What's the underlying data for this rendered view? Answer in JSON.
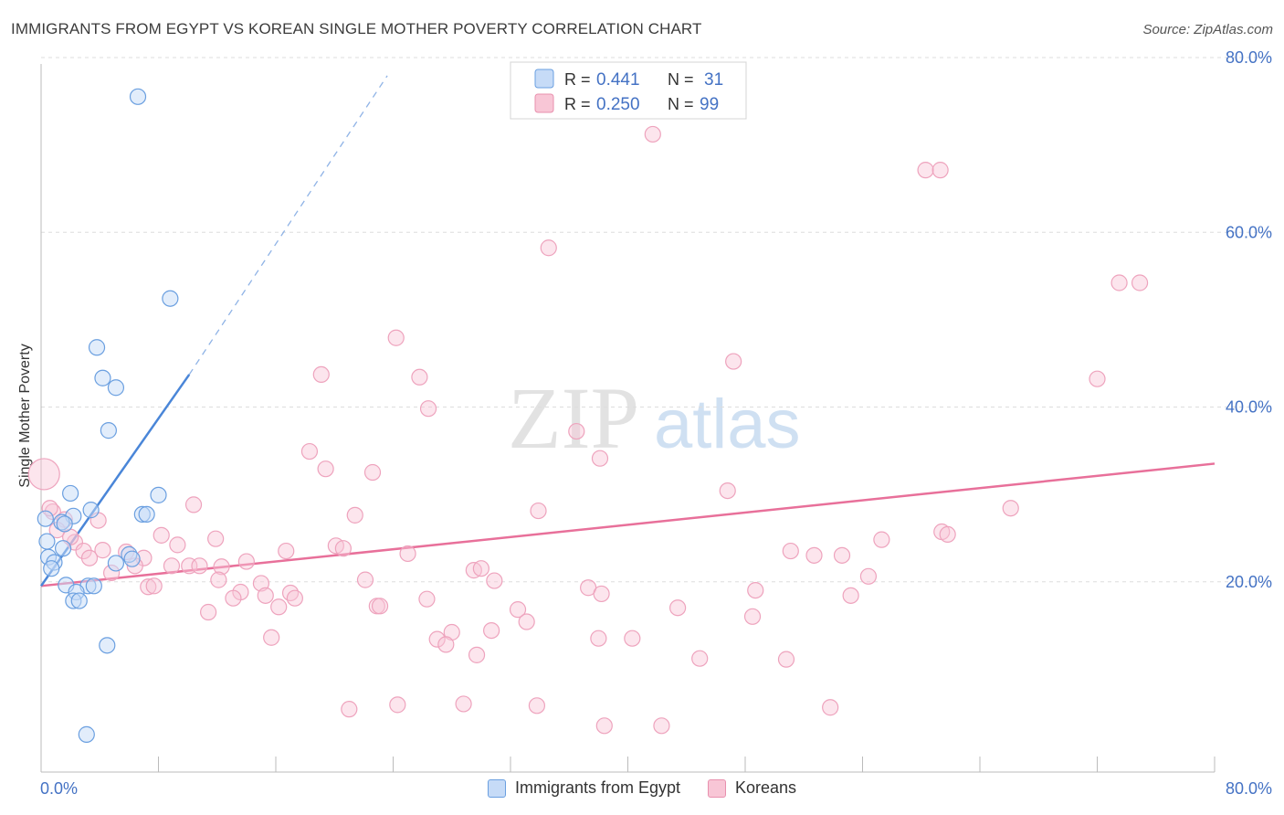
{
  "title": "IMMIGRANTS FROM EGYPT VS KOREAN SINGLE MOTHER POVERTY CORRELATION CHART",
  "source": "Source: ZipAtlas.com",
  "watermark": {
    "zip": "ZIP",
    "atlas": "atlas"
  },
  "legend": [
    {
      "r_label": "R =",
      "r_value": "0.441",
      "n_label": "N =",
      "n_value": "31"
    },
    {
      "r_label": "R =",
      "r_value": "0.250",
      "n_label": "N =",
      "n_value": "99"
    }
  ],
  "bottom_legend": [
    "Immigrants from Egypt",
    "Koreans"
  ],
  "chart_data": {
    "type": "scatter",
    "xlabel": "",
    "ylabel": "Single Mother Poverty",
    "xlim": [
      0,
      80
    ],
    "ylim": [
      0,
      80
    ],
    "x_tick_labels": [
      "0.0%",
      "80.0%"
    ],
    "y_tick_labels": [
      "80.0%",
      "60.0%",
      "40.0%",
      "20.0%"
    ],
    "y_ticks": [
      80,
      60,
      40,
      20
    ],
    "grid": true,
    "colors": {
      "egypt": "#4a86d8",
      "koreans": "#e8709a",
      "axis_text": "#4472c4"
    },
    "series": [
      {
        "name": "Immigrants from Egypt",
        "points": [
          [
            6.6,
            77.3
          ],
          [
            8.8,
            54.2
          ],
          [
            3.8,
            48.6
          ],
          [
            4.2,
            45.1
          ],
          [
            5.1,
            44.0
          ],
          [
            4.6,
            39.1
          ],
          [
            8.0,
            31.7
          ],
          [
            2.0,
            31.9
          ],
          [
            3.4,
            30.0
          ],
          [
            6.9,
            29.5
          ],
          [
            7.2,
            29.5
          ],
          [
            2.2,
            29.3
          ],
          [
            1.4,
            28.6
          ],
          [
            1.6,
            28.4
          ],
          [
            0.3,
            29.0
          ],
          [
            0.4,
            26.4
          ],
          [
            1.5,
            25.6
          ],
          [
            0.5,
            24.6
          ],
          [
            0.9,
            24.0
          ],
          [
            0.7,
            23.3
          ],
          [
            6.0,
            24.9
          ],
          [
            6.2,
            24.4
          ],
          [
            5.1,
            23.9
          ],
          [
            1.7,
            21.4
          ],
          [
            3.2,
            21.3
          ],
          [
            3.6,
            21.3
          ],
          [
            2.4,
            20.6
          ],
          [
            2.2,
            19.6
          ],
          [
            2.6,
            19.6
          ],
          [
            4.5,
            14.5
          ],
          [
            3.1,
            4.3
          ]
        ],
        "trend": {
          "x0": 0,
          "y0": 21.3,
          "x1": 10.1,
          "y1": 45.5,
          "dash_to_x": 23.6,
          "dash_to_y": 79.7
        }
      },
      {
        "name": "Koreans",
        "points": [
          [
            41.7,
            73.0
          ],
          [
            60.3,
            68.9
          ],
          [
            61.3,
            68.9
          ],
          [
            34.6,
            60.0
          ],
          [
            73.5,
            56.0
          ],
          [
            74.9,
            56.0
          ],
          [
            24.2,
            49.7
          ],
          [
            47.2,
            47.0
          ],
          [
            19.1,
            45.5
          ],
          [
            25.8,
            45.2
          ],
          [
            72.0,
            45.0
          ],
          [
            26.4,
            41.6
          ],
          [
            36.5,
            39.0
          ],
          [
            18.3,
            36.7
          ],
          [
            38.1,
            35.9
          ],
          [
            19.4,
            34.7
          ],
          [
            22.6,
            34.3
          ],
          [
            0.2,
            34.1
          ],
          [
            46.8,
            32.2
          ],
          [
            10.4,
            30.6
          ],
          [
            0.8,
            29.8
          ],
          [
            33.9,
            29.9
          ],
          [
            66.1,
            30.2
          ],
          [
            21.4,
            29.4
          ],
          [
            1.6,
            28.9
          ],
          [
            3.9,
            28.8
          ],
          [
            8.2,
            27.1
          ],
          [
            11.9,
            26.7
          ],
          [
            57.3,
            26.6
          ],
          [
            61.4,
            27.5
          ],
          [
            61.8,
            27.2
          ],
          [
            2.3,
            26.3
          ],
          [
            9.3,
            26.0
          ],
          [
            20.1,
            25.9
          ],
          [
            20.6,
            25.6
          ],
          [
            16.7,
            25.3
          ],
          [
            4.2,
            25.4
          ],
          [
            5.8,
            25.2
          ],
          [
            2.9,
            25.3
          ],
          [
            3.3,
            24.5
          ],
          [
            7.0,
            24.5
          ],
          [
            25.0,
            25.0
          ],
          [
            51.1,
            25.3
          ],
          [
            52.7,
            24.8
          ],
          [
            54.6,
            24.8
          ],
          [
            14.0,
            24.1
          ],
          [
            8.9,
            23.6
          ],
          [
            10.1,
            23.6
          ],
          [
            10.8,
            23.6
          ],
          [
            12.3,
            23.5
          ],
          [
            4.8,
            22.8
          ],
          [
            6.4,
            23.6
          ],
          [
            29.5,
            23.1
          ],
          [
            30.0,
            23.3
          ],
          [
            56.4,
            22.4
          ],
          [
            12.1,
            22.0
          ],
          [
            22.1,
            22.0
          ],
          [
            30.9,
            21.9
          ],
          [
            7.3,
            21.2
          ],
          [
            7.7,
            21.3
          ],
          [
            15.0,
            21.6
          ],
          [
            37.3,
            21.1
          ],
          [
            13.6,
            20.6
          ],
          [
            48.7,
            20.8
          ],
          [
            15.3,
            20.2
          ],
          [
            17.0,
            20.5
          ],
          [
            38.2,
            20.4
          ],
          [
            55.2,
            20.2
          ],
          [
            13.1,
            19.9
          ],
          [
            17.3,
            19.9
          ],
          [
            26.3,
            19.8
          ],
          [
            22.9,
            19.0
          ],
          [
            23.1,
            19.0
          ],
          [
            32.5,
            18.6
          ],
          [
            43.4,
            18.8
          ],
          [
            11.4,
            18.3
          ],
          [
            16.2,
            18.9
          ],
          [
            48.5,
            17.8
          ],
          [
            33.1,
            17.2
          ],
          [
            30.7,
            16.2
          ],
          [
            28.0,
            16.0
          ],
          [
            27.0,
            15.2
          ],
          [
            38.0,
            15.3
          ],
          [
            40.3,
            15.3
          ],
          [
            15.7,
            15.4
          ],
          [
            27.6,
            14.6
          ],
          [
            29.7,
            13.4
          ],
          [
            44.9,
            13.0
          ],
          [
            50.8,
            12.9
          ],
          [
            21.0,
            7.2
          ],
          [
            24.3,
            7.7
          ],
          [
            28.8,
            7.8
          ],
          [
            33.8,
            7.6
          ],
          [
            53.8,
            7.4
          ],
          [
            38.4,
            5.3
          ],
          [
            42.3,
            5.3
          ],
          [
            0.6,
            30.2
          ],
          [
            1.1,
            27.7
          ],
          [
            2.0,
            26.9
          ]
        ],
        "trend": {
          "x0": 0,
          "y0": 21.3,
          "x1": 80,
          "y1": 35.3
        }
      }
    ]
  }
}
